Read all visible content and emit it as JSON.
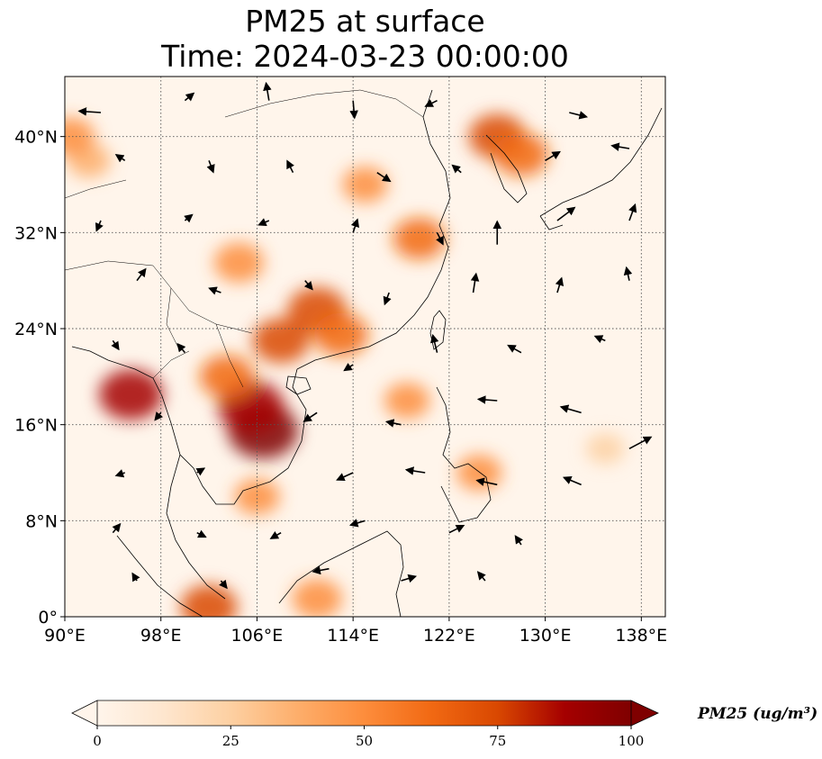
{
  "title_line1": "PM25 at surface",
  "title_line2": "Time: 2024-03-23 00:00:00",
  "map": {
    "lon_range": [
      90,
      140
    ],
    "lat_range": [
      0,
      45
    ],
    "lon_ticks": [
      {
        "value": 90,
        "label": "90°E"
      },
      {
        "value": 98,
        "label": "98°E"
      },
      {
        "value": 106,
        "label": "106°E"
      },
      {
        "value": 114,
        "label": "114°E"
      },
      {
        "value": 122,
        "label": "122°E"
      },
      {
        "value": 130,
        "label": "130°E"
      },
      {
        "value": 138,
        "label": "138°E"
      }
    ],
    "lat_ticks": [
      {
        "value": 0,
        "label": "0°"
      },
      {
        "value": 8,
        "label": "8°N"
      },
      {
        "value": 16,
        "label": "16°N"
      },
      {
        "value": 24,
        "label": "24°N"
      },
      {
        "value": 32,
        "label": "32°N"
      },
      {
        "value": 40,
        "label": "40°N"
      }
    ],
    "gridlines": "dotted",
    "background_color": "#fff5eb",
    "hotspots": [
      {
        "lon": 106.5,
        "lat": 15.5,
        "value": 100
      },
      {
        "lon": 105.5,
        "lat": 17.5,
        "value": 90
      },
      {
        "lon": 95.5,
        "lat": 18.5,
        "value": 85
      },
      {
        "lon": 111.0,
        "lat": 25.5,
        "value": 75
      },
      {
        "lon": 108.0,
        "lat": 23.0,
        "value": 70
      },
      {
        "lon": 103.5,
        "lat": 20.0,
        "value": 65
      },
      {
        "lon": 126.0,
        "lat": 40.0,
        "value": 70
      },
      {
        "lon": 128.0,
        "lat": 38.5,
        "value": 65
      },
      {
        "lon": 119.5,
        "lat": 31.5,
        "value": 60
      },
      {
        "lon": 104.5,
        "lat": 29.5,
        "value": 55
      },
      {
        "lon": 102.0,
        "lat": 0.8,
        "value": 70
      },
      {
        "lon": 111.0,
        "lat": 1.5,
        "value": 55
      },
      {
        "lon": 113.0,
        "lat": 23.5,
        "value": 65
      },
      {
        "lon": 118.5,
        "lat": 18.0,
        "value": 45
      },
      {
        "lon": 115.0,
        "lat": 36.0,
        "value": 45
      },
      {
        "lon": 92.0,
        "lat": 38.0,
        "value": 40
      },
      {
        "lon": 135.0,
        "lat": 14.0,
        "value": 30
      },
      {
        "lon": 124.5,
        "lat": 12.0,
        "value": 45
      },
      {
        "lon": 90.5,
        "lat": 40.0,
        "value": 50
      },
      {
        "lon": 106.0,
        "lat": 10.0,
        "value": 45
      }
    ],
    "wind_vectors": [
      {
        "lon": 93,
        "lat": 42,
        "u": -1.5,
        "v": 0.1
      },
      {
        "lon": 100,
        "lat": 43,
        "u": 0.6,
        "v": 0.5
      },
      {
        "lon": 107,
        "lat": 43,
        "u": -0.2,
        "v": 1.2
      },
      {
        "lon": 114,
        "lat": 43,
        "u": 0.1,
        "v": -1.2
      },
      {
        "lon": 121,
        "lat": 43,
        "u": -0.8,
        "v": -0.4
      },
      {
        "lon": 132,
        "lat": 42,
        "u": 1.2,
        "v": -0.3
      },
      {
        "lon": 95,
        "lat": 38,
        "u": -0.6,
        "v": 0.4
      },
      {
        "lon": 102,
        "lat": 38,
        "u": 0.3,
        "v": -0.8
      },
      {
        "lon": 109,
        "lat": 37,
        "u": -0.4,
        "v": 0.8
      },
      {
        "lon": 116,
        "lat": 37,
        "u": 0.9,
        "v": -0.6
      },
      {
        "lon": 123,
        "lat": 37,
        "u": -0.6,
        "v": 0.5
      },
      {
        "lon": 130,
        "lat": 38,
        "u": 1.0,
        "v": 0.6
      },
      {
        "lon": 137,
        "lat": 39,
        "u": -1.2,
        "v": 0.2
      },
      {
        "lon": 93,
        "lat": 33,
        "u": -0.3,
        "v": -0.7
      },
      {
        "lon": 100,
        "lat": 33,
        "u": 0.5,
        "v": 0.4
      },
      {
        "lon": 107,
        "lat": 33,
        "u": -0.7,
        "v": -0.3
      },
      {
        "lon": 114,
        "lat": 32,
        "u": 0.3,
        "v": 0.9
      },
      {
        "lon": 121,
        "lat": 32,
        "u": 0.4,
        "v": -0.8
      },
      {
        "lon": 126,
        "lat": 31,
        "u": 0.0,
        "v": 1.6
      },
      {
        "lon": 131,
        "lat": 33,
        "u": 1.2,
        "v": 0.9
      },
      {
        "lon": 137,
        "lat": 33,
        "u": 0.4,
        "v": 1.1
      },
      {
        "lon": 96,
        "lat": 28,
        "u": 0.6,
        "v": 0.8
      },
      {
        "lon": 103,
        "lat": 27,
        "u": -0.8,
        "v": 0.3
      },
      {
        "lon": 110,
        "lat": 28,
        "u": 0.5,
        "v": -0.6
      },
      {
        "lon": 117,
        "lat": 27,
        "u": -0.3,
        "v": -0.8
      },
      {
        "lon": 124,
        "lat": 27,
        "u": 0.2,
        "v": 1.3
      },
      {
        "lon": 131,
        "lat": 27,
        "u": 0.3,
        "v": 1.0
      },
      {
        "lon": 137,
        "lat": 28,
        "u": -0.2,
        "v": 0.9
      },
      {
        "lon": 94,
        "lat": 23,
        "u": 0.4,
        "v": -0.6
      },
      {
        "lon": 100,
        "lat": 22,
        "u": -0.5,
        "v": 0.6
      },
      {
        "lon": 114,
        "lat": 21,
        "u": -0.6,
        "v": -0.4
      },
      {
        "lon": 121,
        "lat": 22,
        "u": -0.3,
        "v": 1.2
      },
      {
        "lon": 128,
        "lat": 22,
        "u": -0.9,
        "v": 0.5
      },
      {
        "lon": 135,
        "lat": 23,
        "u": -0.7,
        "v": 0.3
      },
      {
        "lon": 98,
        "lat": 17,
        "u": -0.4,
        "v": -0.5
      },
      {
        "lon": 111,
        "lat": 17,
        "u": -0.9,
        "v": -0.6
      },
      {
        "lon": 118,
        "lat": 16,
        "u": -1.0,
        "v": 0.2
      },
      {
        "lon": 126,
        "lat": 18,
        "u": -1.3,
        "v": 0.1
      },
      {
        "lon": 133,
        "lat": 17,
        "u": -1.4,
        "v": 0.4
      },
      {
        "lon": 137,
        "lat": 14,
        "u": 1.5,
        "v": 0.8
      },
      {
        "lon": 95,
        "lat": 12,
        "u": -0.6,
        "v": -0.2
      },
      {
        "lon": 101,
        "lat": 12,
        "u": 0.5,
        "v": 0.3
      },
      {
        "lon": 114,
        "lat": 12,
        "u": -1.1,
        "v": -0.5
      },
      {
        "lon": 120,
        "lat": 12,
        "u": -1.3,
        "v": 0.2
      },
      {
        "lon": 126,
        "lat": 11,
        "u": -1.4,
        "v": 0.3
      },
      {
        "lon": 133,
        "lat": 11,
        "u": -1.2,
        "v": 0.5
      },
      {
        "lon": 94,
        "lat": 7,
        "u": 0.5,
        "v": 0.6
      },
      {
        "lon": 101,
        "lat": 7,
        "u": 0.6,
        "v": -0.3
      },
      {
        "lon": 108,
        "lat": 7,
        "u": -0.7,
        "v": -0.4
      },
      {
        "lon": 115,
        "lat": 8,
        "u": -1.0,
        "v": -0.3
      },
      {
        "lon": 122,
        "lat": 7,
        "u": 1.0,
        "v": 0.5
      },
      {
        "lon": 128,
        "lat": 6,
        "u": -0.4,
        "v": 0.6
      },
      {
        "lon": 96,
        "lat": 3,
        "u": -0.3,
        "v": 0.5
      },
      {
        "lon": 103,
        "lat": 3,
        "u": 0.4,
        "v": -0.5
      },
      {
        "lon": 112,
        "lat": 4,
        "u": -1.1,
        "v": -0.2
      },
      {
        "lon": 118,
        "lat": 3,
        "u": 1.0,
        "v": 0.3
      },
      {
        "lon": 125,
        "lat": 3,
        "u": -0.5,
        "v": 0.6
      }
    ]
  },
  "colorbar": {
    "min": 0,
    "max": 100,
    "ticks": [
      "0",
      "25",
      "50",
      "75",
      "100"
    ],
    "label": "PM25 (ug/m³)",
    "extend": "both",
    "colors": [
      "#fff5eb",
      "#fee6ce",
      "#fdd0a2",
      "#fdae6b",
      "#fd8d3c",
      "#f16913",
      "#d94801",
      "#a50000",
      "#7f0000"
    ]
  }
}
